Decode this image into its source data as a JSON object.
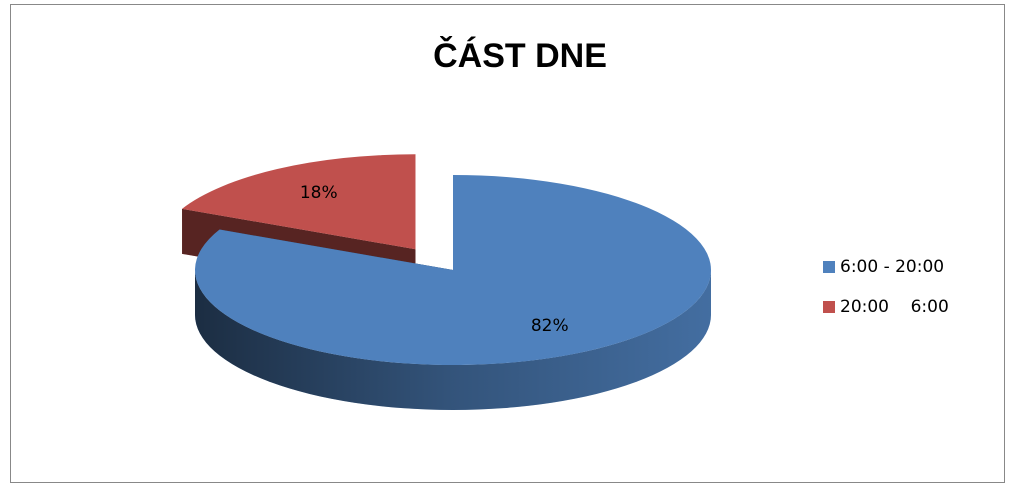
{
  "chart_data": {
    "type": "pie3d",
    "title": "ČÁST DNE",
    "categories": [
      "6:00 - 20:00",
      "20:00    6:00"
    ],
    "values": [
      82,
      18
    ],
    "value_labels": [
      "82%",
      "18%"
    ],
    "colors": [
      "#4f81bd",
      "#c0504d"
    ],
    "legend": "right",
    "exploded": [
      false,
      true
    ]
  }
}
